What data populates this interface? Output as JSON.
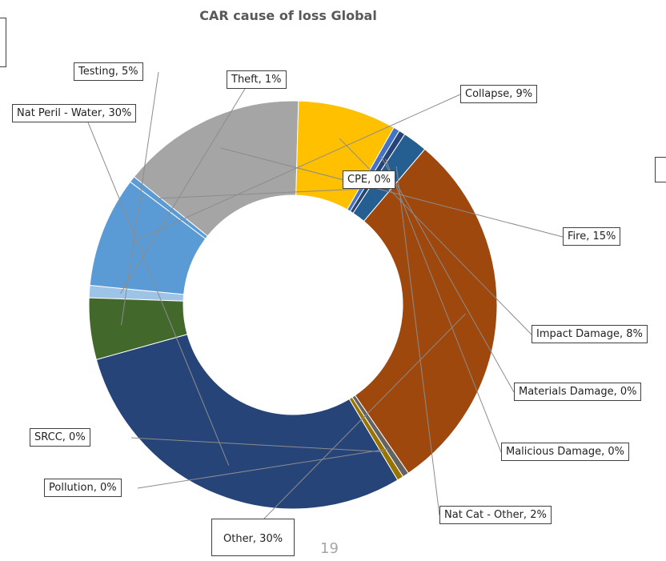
{
  "chart_data": {
    "type": "pie",
    "title": "CAR cause of loss Global",
    "donut": true,
    "slices": [
      {
        "label": "Theft, 1%",
        "name": "Theft",
        "value": 1,
        "color": "#9DC3E6"
      },
      {
        "label": "Collapse, 9%",
        "name": "Collapse",
        "value": 9,
        "color": "#5B9BD5"
      },
      {
        "label": "CPE, 0%",
        "name": "CPE",
        "value": 0,
        "color": "#5B9BD5"
      },
      {
        "label": "Fire, 15%",
        "name": "Fire",
        "value": 15,
        "color": "#A5A5A5"
      },
      {
        "label": "Impact Damage, 8%",
        "name": "Impact Damage",
        "value": 8,
        "color": "#FFC000"
      },
      {
        "label": "Materials Damage, 0%",
        "name": "Materials Damage",
        "value": 0,
        "color": "#4472C4"
      },
      {
        "label": "Malicious Damage, 0%",
        "name": "Malicious Damage",
        "value": 0,
        "color": "#264478"
      },
      {
        "label": "Nat Cat - Other, 2%",
        "name": "Nat Cat - Other",
        "value": 2,
        "color": "#255E91"
      },
      {
        "label": "Other, 30%",
        "name": "Other",
        "value": 30,
        "color": "#9E480E"
      },
      {
        "label": "Pollution, 0%",
        "name": "Pollution",
        "value": 0,
        "color": "#636363"
      },
      {
        "label": "SRCC, 0%",
        "name": "SRCC",
        "value": 0,
        "color": "#997300"
      },
      {
        "label": "Nat Peril - Water, 30%",
        "name": "Nat Peril - Water",
        "value": 30,
        "color": "#264478"
      },
      {
        "label": "Testing, 5%",
        "name": "Testing",
        "value": 5,
        "color": "#43682B"
      }
    ]
  },
  "page_number": "19"
}
